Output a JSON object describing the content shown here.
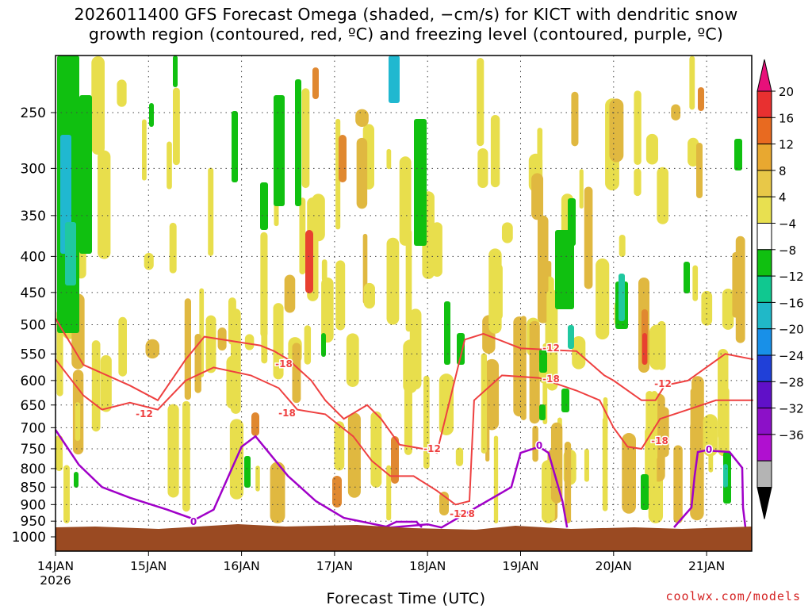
{
  "title": {
    "line1": "2026011400 GFS Forecast Omega (shaded, −cm/s) for KICT with dendritic snow",
    "line2": "growth region (contoured, red, ºC) and freezing level (contoured, purple, ºC)"
  },
  "xlabel": "Forecast Time (UTC)",
  "credit": "coolwx.com/models",
  "colors": {
    "dgz": "#ee4040",
    "freezing": "#a000c8",
    "ground": "#9a4a22",
    "light_yellow": "#e8de4c",
    "mid_yellow": "#e0b840",
    "orange": "#e08830",
    "red": "#e84030",
    "green": "#10c010",
    "teal": "#20c8a0",
    "cyan": "#20b8d0"
  },
  "chart_data": {
    "type": "heatmap",
    "x_ticks": [
      "14JAN\n2026",
      "15JAN",
      "16JAN",
      "17JAN",
      "18JAN",
      "19JAN",
      "20JAN",
      "21JAN"
    ],
    "x_range_days": [
      0,
      7.5
    ],
    "y_ticks": [
      250,
      300,
      350,
      400,
      450,
      500,
      550,
      600,
      650,
      700,
      750,
      800,
      850,
      900,
      950,
      1000
    ],
    "ylim_hpa": [
      200,
      1000
    ],
    "colorbar": {
      "levels": [
        20,
        16,
        12,
        8,
        4,
        -4,
        -8,
        -12,
        -16,
        -20,
        -24,
        -28,
        -32,
        -36
      ],
      "colors": [
        "#e8107a",
        "#e83030",
        "#e86a20",
        "#e8a830",
        "#e8c848",
        "#e8e050",
        "#ffffff",
        "#10c010",
        "#10c890",
        "#20b8c8",
        "#1890e8",
        "#2040d8",
        "#6010c8",
        "#8c10c8",
        "#b010d0",
        "#b4b4b4",
        "#000000"
      ]
    },
    "contour_labels": {
      "dgz": [
        "-18",
        "-12",
        "-18",
        "-12",
        "-18",
        "-12",
        "-18",
        "-12",
        "-18",
        "-12"
      ],
      "freezing": [
        "0",
        "0",
        "0"
      ]
    },
    "dgz_upper_-18": [
      [
        0,
        490
      ],
      [
        0.3,
        570
      ],
      [
        0.8,
        610
      ],
      [
        1.1,
        640
      ],
      [
        1.4,
        560
      ],
      [
        1.6,
        520
      ],
      [
        2.0,
        530
      ],
      [
        2.2,
        535
      ],
      [
        2.35,
        545
      ],
      [
        2.5,
        560
      ],
      [
        2.75,
        600
      ],
      [
        2.9,
        640
      ],
      [
        3.1,
        680
      ],
      [
        3.35,
        650
      ],
      [
        3.5,
        680
      ],
      [
        3.7,
        740
      ],
      [
        3.95,
        750
      ],
      [
        4.1,
        760
      ],
      [
        4.4,
        525
      ],
      [
        4.6,
        515
      ],
      [
        5.0,
        540
      ],
      [
        5.6,
        545
      ],
      [
        5.9,
        590
      ],
      [
        6.0,
        600
      ],
      [
        6.3,
        640
      ],
      [
        6.45,
        640
      ],
      [
        6.55,
        610
      ],
      [
        6.8,
        600
      ],
      [
        7.2,
        550
      ],
      [
        7.5,
        560
      ]
    ],
    "dgz_lower_-12": [
      [
        0,
        560
      ],
      [
        0.3,
        630
      ],
      [
        0.5,
        660
      ],
      [
        0.8,
        645
      ],
      [
        1.1,
        660
      ],
      [
        1.4,
        600
      ],
      [
        1.7,
        575
      ],
      [
        2.1,
        590
      ],
      [
        2.4,
        615
      ],
      [
        2.6,
        660
      ],
      [
        2.9,
        670
      ],
      [
        3.2,
        720
      ],
      [
        3.4,
        780
      ],
      [
        3.6,
        820
      ],
      [
        3.85,
        820
      ],
      [
        4.1,
        860
      ],
      [
        4.3,
        900
      ],
      [
        4.45,
        890
      ],
      [
        4.5,
        640
      ],
      [
        4.8,
        590
      ],
      [
        5.2,
        595
      ],
      [
        5.6,
        620
      ],
      [
        5.85,
        640
      ],
      [
        6.0,
        700
      ],
      [
        6.15,
        745
      ],
      [
        6.3,
        750
      ],
      [
        6.5,
        680
      ],
      [
        6.8,
        660
      ],
      [
        7.1,
        640
      ],
      [
        7.5,
        640
      ]
    ],
    "freezing_0": [
      [
        0,
        705
      ],
      [
        0.25,
        790
      ],
      [
        0.5,
        850
      ],
      [
        0.8,
        880
      ],
      [
        1.2,
        915
      ],
      [
        1.5,
        945
      ],
      [
        1.7,
        915
      ],
      [
        2.0,
        745
      ],
      [
        2.15,
        720
      ],
      [
        2.5,
        820
      ],
      [
        2.8,
        890
      ],
      [
        3.1,
        940
      ],
      [
        3.6,
        970
      ],
      [
        4.0,
        960
      ],
      [
        4.15,
        970
      ],
      [
        4.9,
        850
      ],
      [
        5.0,
        760
      ],
      [
        5.2,
        745
      ],
      [
        5.3,
        760
      ],
      [
        5.45,
        890
      ],
      [
        5.5,
        970
      ]
    ]
  }
}
